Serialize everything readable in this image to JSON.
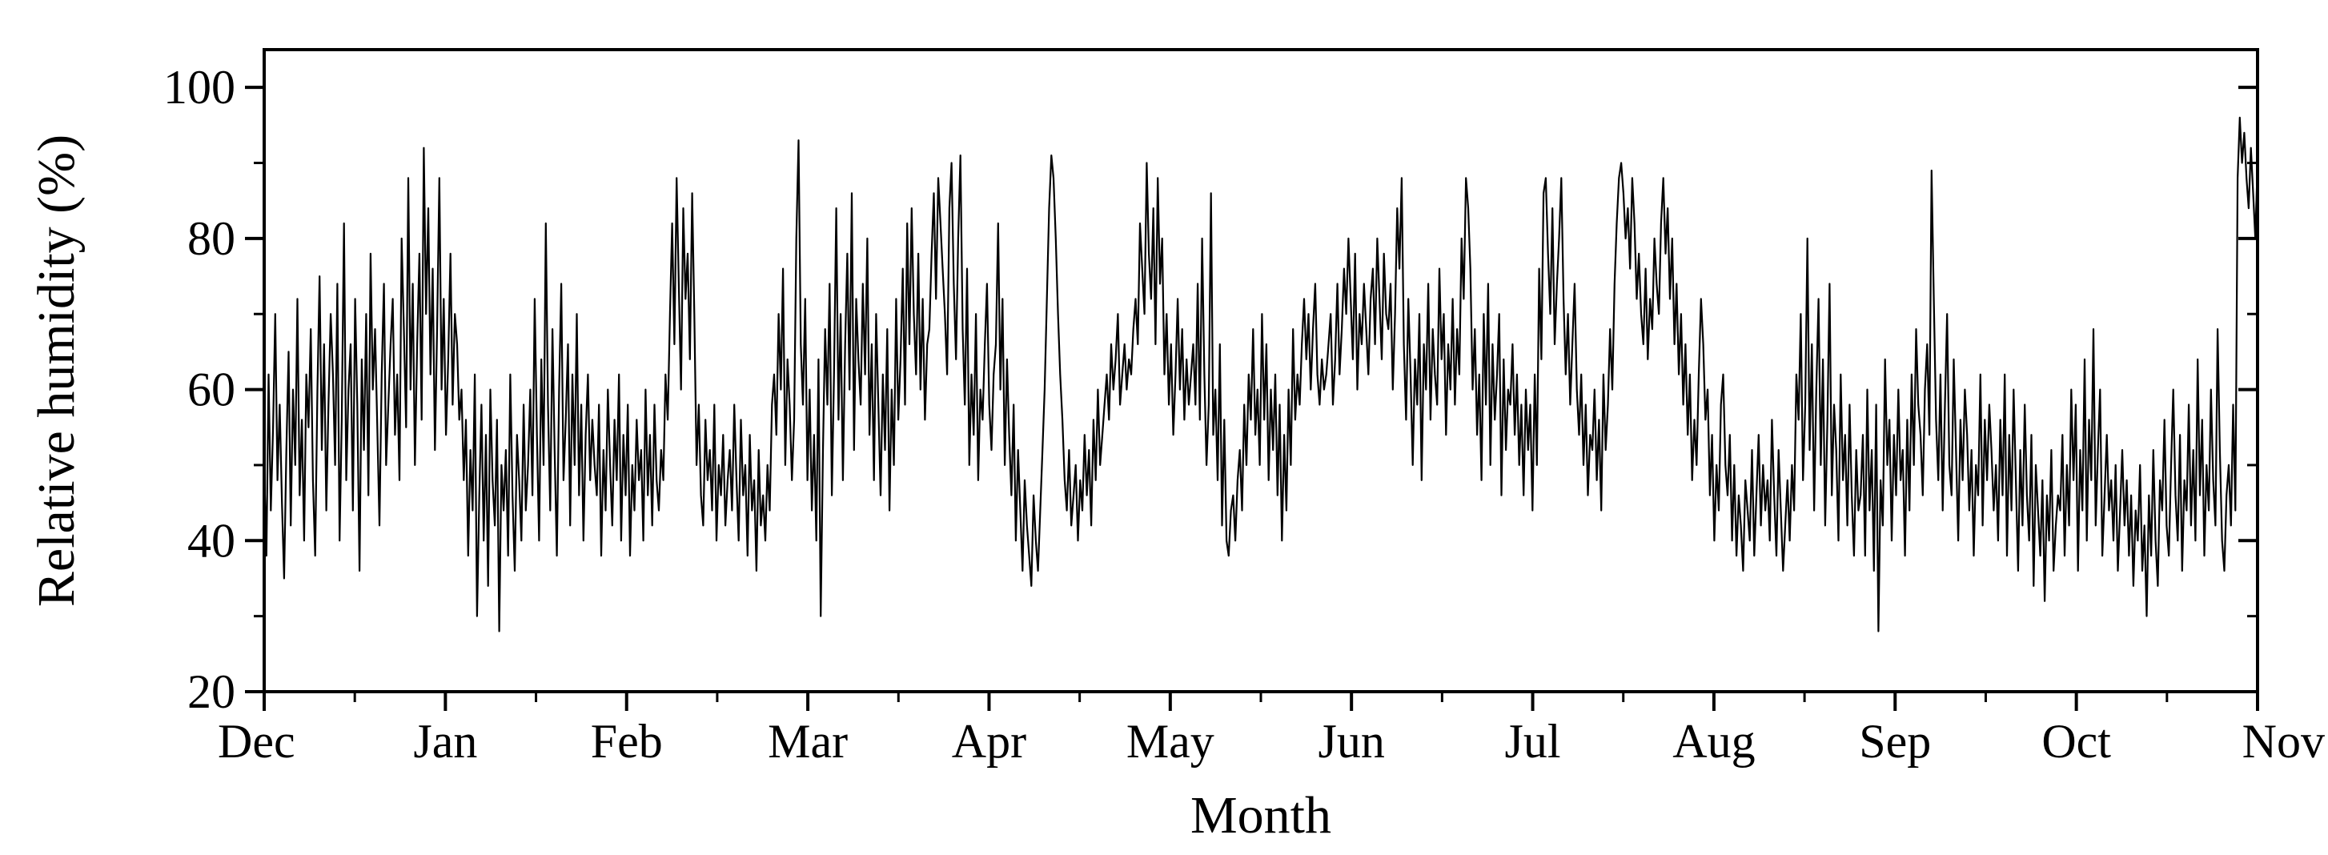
{
  "chart_data": {
    "type": "line",
    "title": "",
    "xlabel": "Month",
    "ylabel": "Relative humidity (%)",
    "xlim": [
      0,
      11
    ],
    "ylim": [
      20,
      105
    ],
    "x_tick_labels": [
      "Dec",
      "Jan",
      "Feb",
      "Mar",
      "Apr",
      "May",
      "Jun",
      "Jul",
      "Aug",
      "Sep",
      "Oct",
      "Nov"
    ],
    "y_ticks": [
      20,
      40,
      60,
      80,
      100
    ],
    "grid": false,
    "legend": "none",
    "line_color": "#000000",
    "samples_per_month": 30,
    "series": [
      {
        "values": [
          50,
          38,
          62,
          44,
          55,
          70,
          48,
          58,
          45,
          35,
          52,
          65,
          42,
          60,
          50,
          72,
          46,
          56,
          40,
          62,
          55,
          68,
          48,
          38,
          60,
          75,
          52,
          66,
          44,
          58,
          70,
          62,
          50,
          74,
          40,
          56,
          82,
          48,
          60,
          66,
          44,
          72,
          58,
          36,
          64,
          52,
          70,
          46,
          78,
          60,
          68,
          55,
          42,
          62,
          74,
          50,
          58,
          66,
          72,
          54,
          62,
          48,
          80,
          68,
          55,
          88,
          60,
          74,
          50,
          66,
          78,
          56,
          92,
          70,
          84,
          62,
          76,
          52,
          68,
          88,
          60,
          72,
          54,
          64,
          78,
          58,
          70,
          66,
          56,
          60,
          48,
          56,
          38,
          52,
          44,
          62,
          30,
          46,
          58,
          40,
          54,
          34,
          60,
          48,
          42,
          56,
          28,
          50,
          44,
          52,
          38,
          62,
          46,
          36,
          54,
          48,
          40,
          58,
          44,
          50,
          60,
          46,
          72,
          54,
          40,
          64,
          50,
          82,
          58,
          44,
          68,
          52,
          38,
          60,
          74,
          48,
          56,
          66,
          42,
          62,
          50,
          70,
          46,
          58,
          40,
          54,
          62,
          48,
          56,
          50,
          46,
          58,
          38,
          52,
          44,
          60,
          50,
          42,
          56,
          48,
          62,
          40,
          54,
          46,
          58,
          38,
          50,
          44,
          56,
          48,
          52,
          40,
          60,
          46,
          54,
          42,
          58,
          48,
          44,
          52,
          48,
          62,
          56,
          70,
          82,
          66,
          88,
          74,
          60,
          84,
          72,
          78,
          64,
          86,
          70,
          50,
          58,
          46,
          42,
          56,
          48,
          52,
          44,
          58,
          40,
          50,
          46,
          54,
          42,
          48,
          52,
          44,
          58,
          48,
          40,
          56,
          46,
          50,
          38,
          54,
          44,
          48,
          36,
          52,
          42,
          46,
          40,
          50,
          44,
          58,
          62,
          54,
          70,
          60,
          76,
          50,
          64,
          58,
          48,
          56,
          80,
          93,
          66,
          58,
          72,
          48,
          60,
          44,
          54,
          40,
          64,
          30,
          52,
          68,
          58,
          74,
          46,
          62,
          84,
          56,
          70,
          48,
          66,
          78,
          60,
          86,
          52,
          72,
          64,
          58,
          74,
          62,
          80,
          54,
          66,
          48,
          70,
          58,
          46,
          62,
          52,
          68,
          44,
          60,
          50,
          72,
          56,
          64,
          76,
          58,
          82,
          66,
          84,
          70,
          62,
          78,
          60,
          72,
          56,
          66,
          68,
          78,
          86,
          72,
          88,
          82,
          76,
          70,
          62,
          84,
          90,
          74,
          64,
          80,
          91,
          68,
          58,
          76,
          50,
          62,
          54,
          70,
          48,
          60,
          56,
          66,
          74,
          58,
          52,
          62,
          66,
          82,
          60,
          72,
          50,
          64,
          54,
          46,
          58,
          40,
          52,
          44,
          36,
          48,
          42,
          38,
          34,
          46,
          40,
          36,
          44,
          52,
          60,
          72,
          84,
          91,
          88,
          80,
          70,
          62,
          56,
          48,
          44,
          52,
          42,
          46,
          50,
          40,
          48,
          44,
          54,
          46,
          52,
          42,
          56,
          48,
          60,
          50,
          54,
          58,
          62,
          56,
          66,
          60,
          64,
          70,
          58,
          62,
          66,
          60,
          64,
          62,
          68,
          72,
          66,
          82,
          76,
          70,
          90,
          78,
          72,
          84,
          66,
          88,
          74,
          80,
          62,
          70,
          58,
          66,
          54,
          62,
          72,
          60,
          68,
          56,
          64,
          58,
          62,
          66,
          58,
          74,
          56,
          80,
          62,
          50,
          58,
          86,
          54,
          60,
          48,
          66,
          42,
          56,
          40,
          38,
          44,
          46,
          40,
          48,
          52,
          44,
          58,
          50,
          62,
          56,
          68,
          54,
          60,
          50,
          70,
          56,
          66,
          48,
          60,
          52,
          62,
          46,
          58,
          40,
          54,
          44,
          60,
          50,
          68,
          56,
          62,
          58,
          66,
          72,
          64,
          70,
          60,
          68,
          74,
          62,
          58,
          64,
          60,
          62,
          66,
          70,
          58,
          64,
          74,
          62,
          68,
          76,
          70,
          80,
          72,
          64,
          78,
          60,
          70,
          66,
          74,
          68,
          62,
          72,
          76,
          66,
          80,
          72,
          64,
          78,
          70,
          68,
          74,
          60,
          70,
          84,
          76,
          88,
          66,
          56,
          72,
          62,
          50,
          64,
          58,
          70,
          48,
          66,
          60,
          74,
          56,
          68,
          62,
          58,
          76,
          64,
          70,
          54,
          66,
          60,
          72,
          58,
          68,
          62,
          80,
          72,
          88,
          84,
          76,
          60,
          68,
          54,
          62,
          48,
          70,
          58,
          74,
          50,
          66,
          56,
          62,
          70,
          46,
          64,
          52,
          60,
          58,
          66,
          54,
          62,
          50,
          58,
          46,
          60,
          52,
          58,
          44,
          62,
          50,
          76,
          64,
          86,
          88,
          78,
          70,
          84,
          66,
          74,
          80,
          88,
          72,
          62,
          70,
          58,
          66,
          74,
          60,
          54,
          62,
          50,
          58,
          46,
          54,
          52,
          60,
          48,
          56,
          44,
          62,
          52,
          58,
          68,
          60,
          74,
          82,
          88,
          90,
          86,
          80,
          84,
          76,
          88,
          82,
          72,
          78,
          70,
          66,
          76,
          64,
          72,
          68,
          80,
          74,
          70,
          82,
          88,
          78,
          84,
          72,
          80,
          66,
          74,
          62,
          70,
          58,
          66,
          54,
          62,
          48,
          56,
          50,
          62,
          72,
          66,
          56,
          60,
          46,
          54,
          40,
          50,
          44,
          58,
          62,
          50,
          46,
          54,
          40,
          50,
          38,
          46,
          42,
          36,
          48,
          44,
          40,
          52,
          38,
          46,
          54,
          42,
          50,
          44,
          48,
          40,
          56,
          46,
          38,
          52,
          44,
          36,
          42,
          48,
          40,
          50,
          44,
          62,
          56,
          70,
          48,
          58,
          80,
          52,
          66,
          44,
          60,
          72,
          50,
          64,
          42,
          56,
          74,
          46,
          58,
          52,
          40,
          62,
          48,
          54,
          42,
          58,
          46,
          38,
          52,
          44,
          46,
          54,
          38,
          60,
          44,
          52,
          36,
          58,
          28,
          48,
          42,
          64,
          50,
          56,
          40,
          54,
          46,
          60,
          48,
          52,
          38,
          56,
          44,
          62,
          50,
          68,
          58,
          54,
          46,
          60,
          66,
          54,
          89,
          72,
          56,
          48,
          62,
          44,
          58,
          70,
          50,
          46,
          64,
          52,
          40,
          56,
          48,
          60,
          54,
          44,
          52,
          38,
          50,
          46,
          62,
          42,
          56,
          48,
          58,
          52,
          44,
          50,
          40,
          56,
          46,
          62,
          38,
          54,
          44,
          60,
          48,
          36,
          52,
          42,
          58,
          46,
          40,
          54,
          34,
          50,
          44,
          38,
          48,
          32,
          46,
          40,
          52,
          36,
          42,
          46,
          44,
          54,
          38,
          50,
          42,
          60,
          48,
          58,
          36,
          52,
          44,
          64,
          40,
          56,
          48,
          68,
          42,
          52,
          60,
          38,
          46,
          54,
          44,
          48,
          40,
          50,
          36,
          44,
          52,
          42,
          48,
          38,
          46,
          34,
          44,
          40,
          50,
          36,
          42,
          30,
          46,
          38,
          52,
          40,
          34,
          48,
          44,
          56,
          42,
          38,
          50,
          60,
          46,
          40,
          54,
          36,
          48,
          44,
          58,
          42,
          52,
          40,
          64,
          46,
          56,
          38,
          50,
          44,
          60,
          48,
          42,
          68,
          52,
          40,
          36,
          46,
          50,
          42,
          58,
          44,
          88,
          96,
          90,
          94,
          88,
          84,
          92,
          86,
          80,
          90
        ]
      }
    ]
  }
}
